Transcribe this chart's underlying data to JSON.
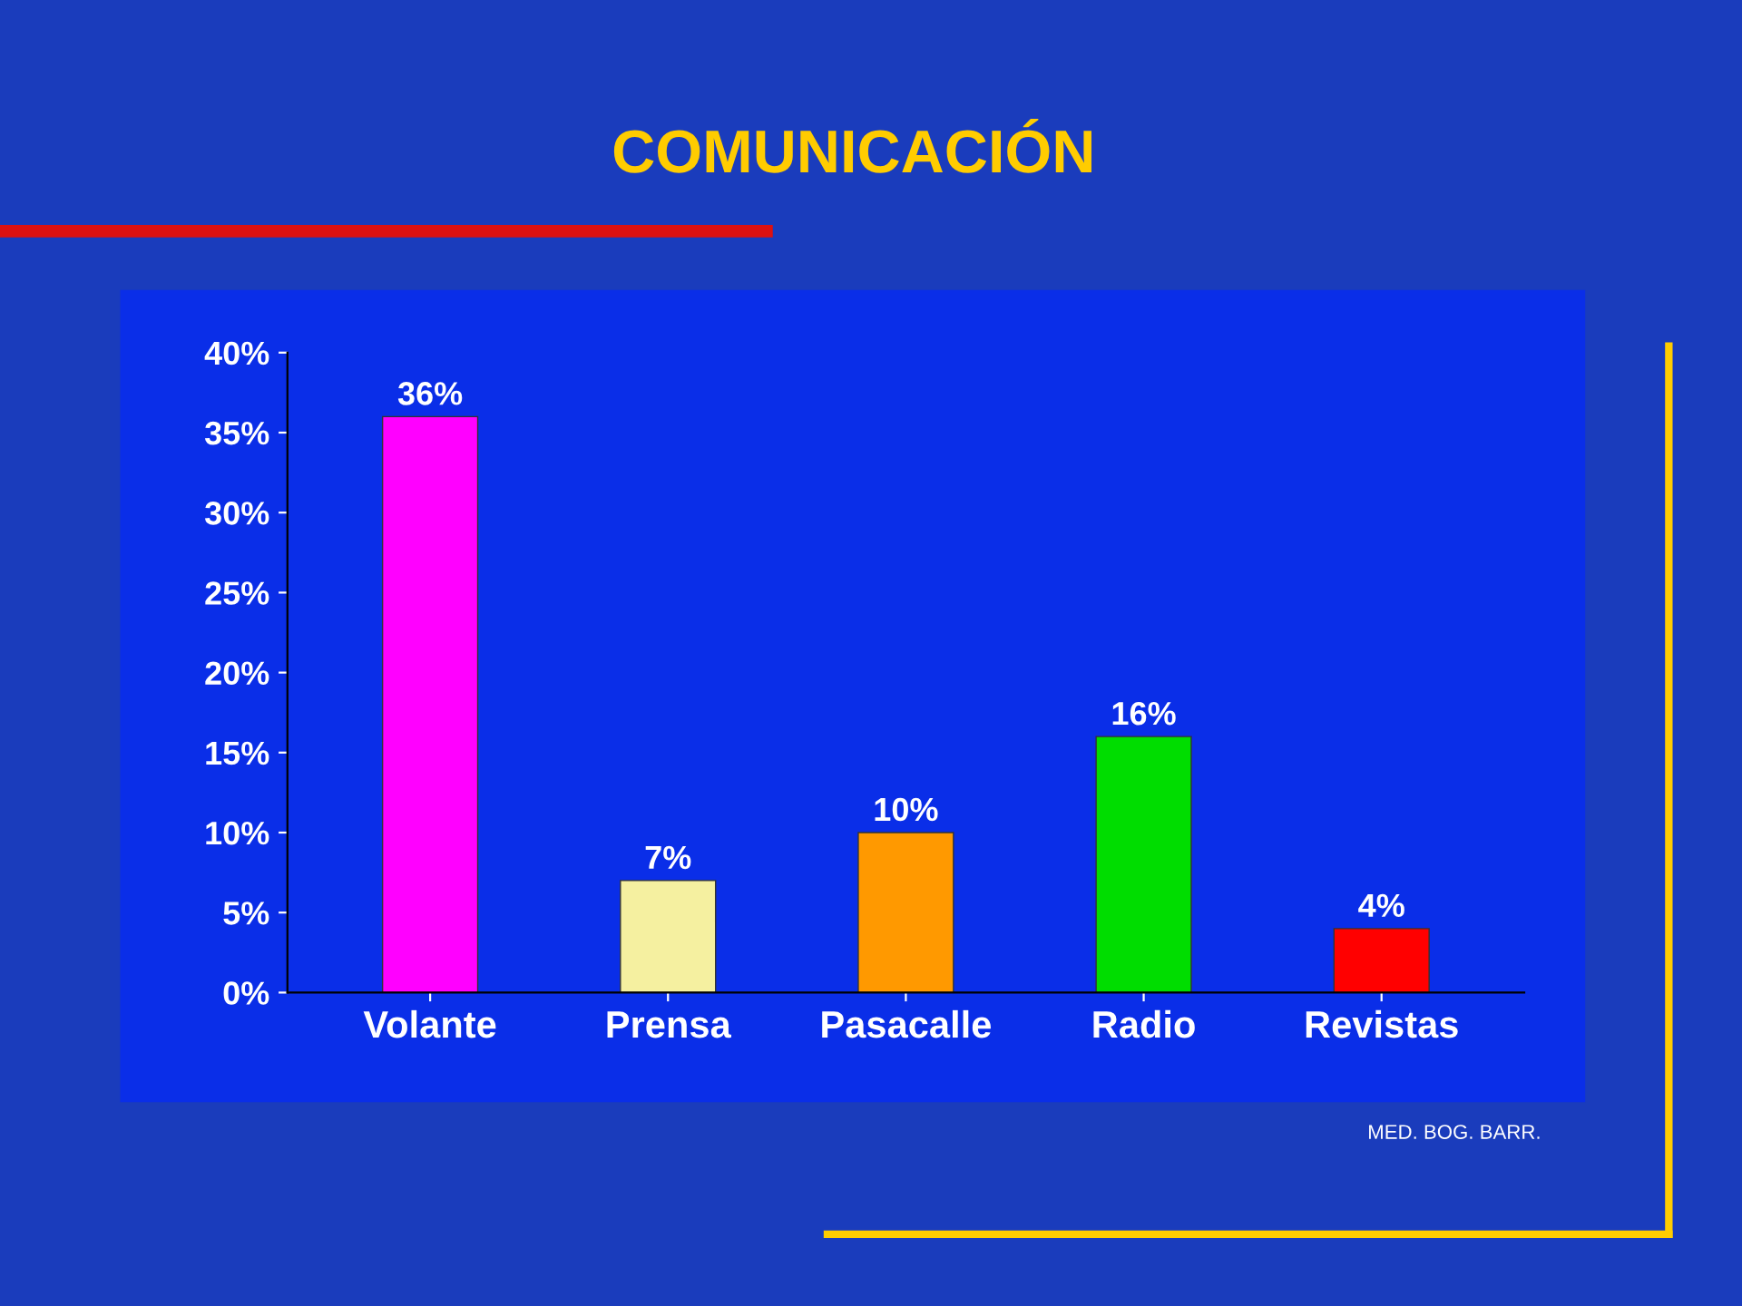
{
  "chart_data": {
    "type": "bar",
    "title": "COMUNICACIÓN",
    "categories": [
      "Volante",
      "Prensa",
      "Pasacalle",
      "Radio",
      "Revistas"
    ],
    "values": [
      36,
      7,
      10,
      16,
      4
    ],
    "colors": [
      "#ff00ff",
      "#f5f0a0",
      "#ff9900",
      "#00dd00",
      "#ff0000"
    ],
    "value_labels": [
      "36%",
      "7%",
      "10%",
      "16%",
      "4%"
    ],
    "ylim": [
      0,
      40
    ],
    "yticks": [
      {
        "value": 0,
        "label": "0%"
      },
      {
        "value": 5,
        "label": "5%"
      },
      {
        "value": 10,
        "label": "10%"
      },
      {
        "value": 15,
        "label": "15%"
      },
      {
        "value": 20,
        "label": "20%"
      },
      {
        "value": 25,
        "label": "25%"
      },
      {
        "value": 30,
        "label": "30%"
      },
      {
        "value": 35,
        "label": "35%"
      },
      {
        "value": 40,
        "label": "40%"
      }
    ],
    "annotations": [
      "MED. BOG. BARR."
    ],
    "grid": false,
    "legend": false
  }
}
